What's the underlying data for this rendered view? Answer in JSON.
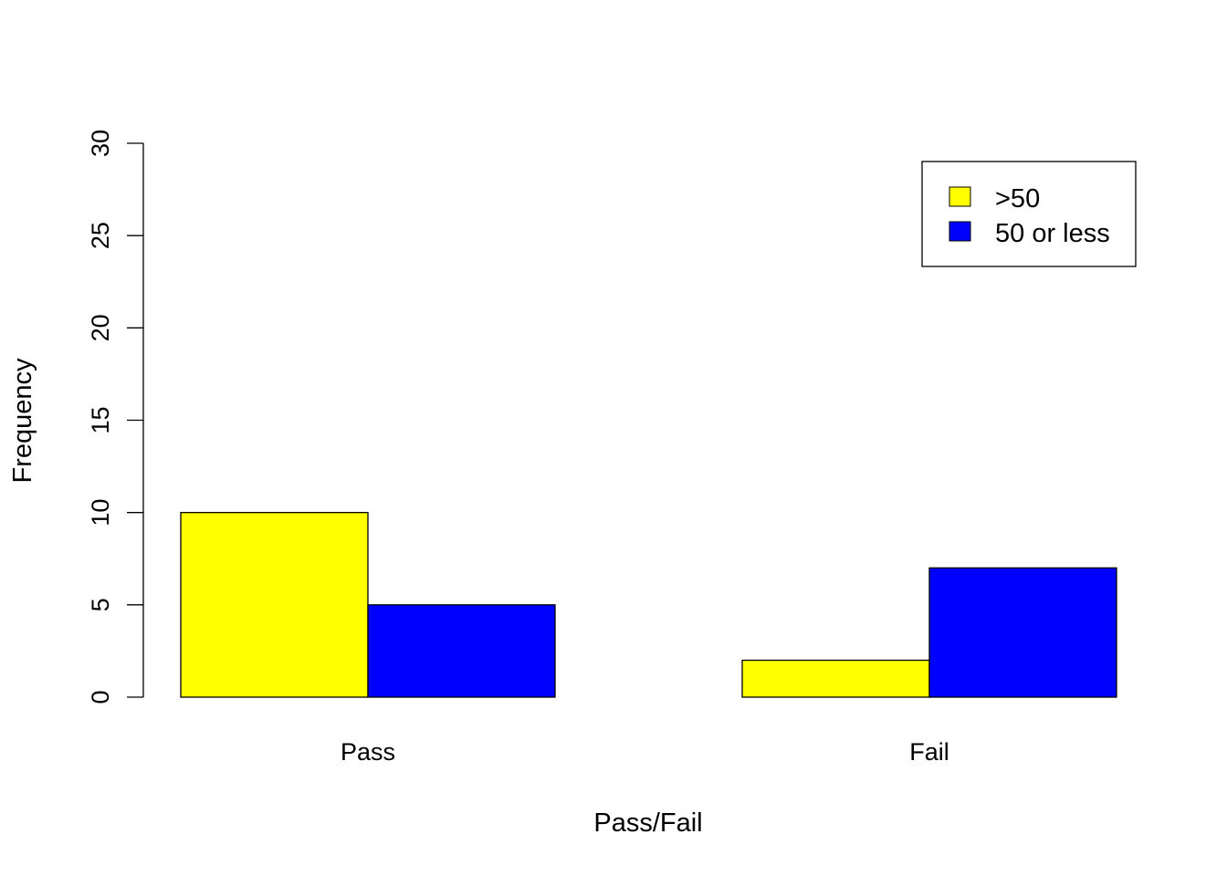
{
  "chart_data": {
    "type": "bar",
    "categories": [
      "Pass",
      "Fail"
    ],
    "series": [
      {
        "name": ">50",
        "values": [
          10,
          2
        ],
        "color": "#FFFF00"
      },
      {
        "name": "50 or less",
        "values": [
          5,
          7
        ],
        "color": "#0000FF"
      }
    ],
    "xlabel": "Pass/Fail",
    "ylabel": "Frequency",
    "ylim": [
      0,
      30
    ],
    "yticks": [
      0,
      5,
      10,
      15,
      20,
      25,
      30
    ],
    "grid": false,
    "legend": {
      "position": "top-right"
    }
  }
}
